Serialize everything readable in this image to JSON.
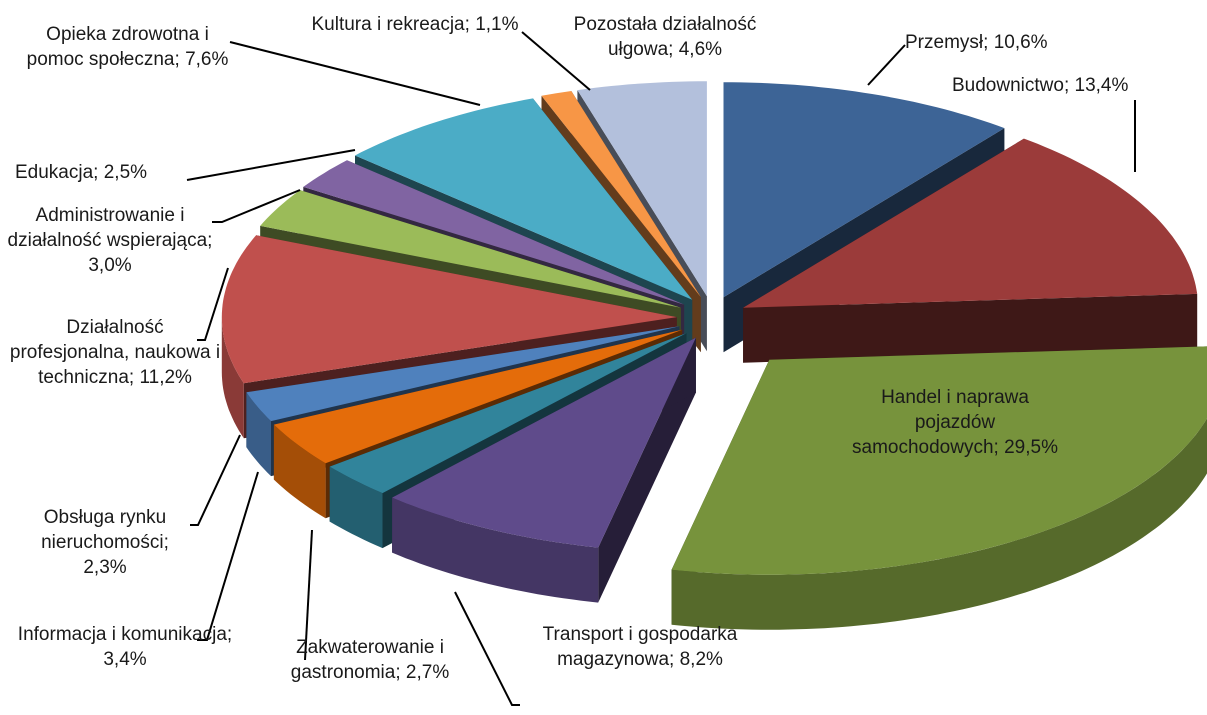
{
  "chart_data": {
    "type": "pie3d",
    "categories": [
      "Przemysł",
      "Budownictwo",
      "Handel i naprawa pojazdów samochodowych",
      "Transport i gospodarka magazynowa",
      "Zakwaterowanie i gastronomia",
      "Informacja i komunikacja",
      "Obsługa rynku nieruchomości",
      "Działalność profesjonalna, naukowa i techniczna",
      "Administrowanie i działalność wspierająca",
      "Edukacja",
      "Opieka zdrowotna i pomoc społeczna",
      "Kultura i rekreacja",
      "Pozostała działalność ułgowa"
    ],
    "values": [
      10.6,
      13.4,
      29.5,
      8.2,
      2.7,
      3.4,
      2.3,
      11.2,
      3.0,
      2.5,
      7.6,
      1.1,
      4.6
    ],
    "value_labels": [
      "10,6%",
      "13,4%",
      "29,5%",
      "8,2%",
      "2,7%",
      "3,4%",
      "2,3%",
      "11,2%",
      "3,0%",
      "2,5%",
      "7,6%",
      "1,1%",
      "4,6%"
    ],
    "label_separator": "; ",
    "colors": [
      "#3d6496",
      "#9b3b3a",
      "#77933c",
      "#5f4b8b",
      "#31849b",
      "#e46c0a",
      "#4f81bd",
      "#c0504d",
      "#9bbb59",
      "#8064a2",
      "#4bacc6",
      "#f79646",
      "#b3c0dc"
    ]
  }
}
